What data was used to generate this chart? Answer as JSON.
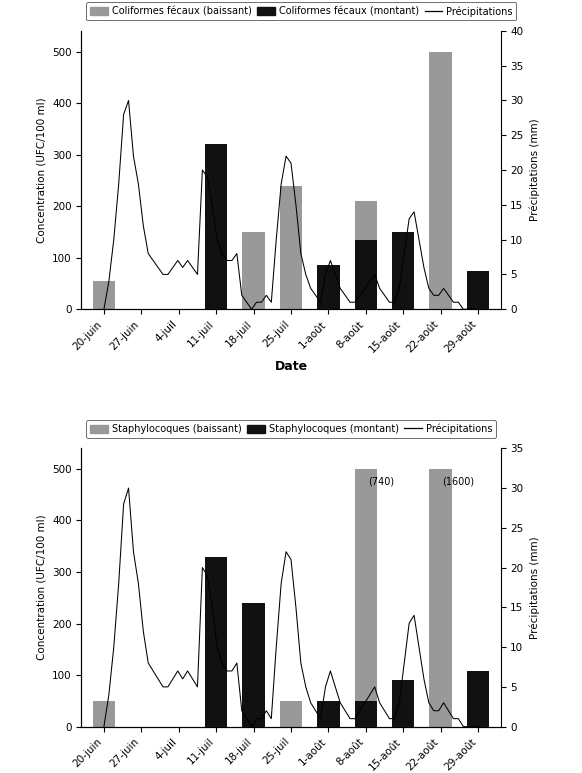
{
  "dates": [
    "20-juin",
    "27-juin",
    "4-juil",
    "11-juil",
    "18-juil",
    "25-juil",
    "1-août",
    "8-août",
    "15-août",
    "22-août",
    "29-août"
  ],
  "chart1": {
    "legend1": "Coliformes fécaux (baissant)",
    "legend2": "Coliformes fécaux (montant)",
    "legend3": "Précipitations",
    "baissant": [
      55,
      0,
      0,
      0,
      150,
      240,
      0,
      210,
      0,
      500,
      0
    ],
    "montant": [
      0,
      0,
      0,
      320,
      0,
      0,
      85,
      135,
      150,
      0,
      75
    ],
    "ylim": [
      0,
      540
    ],
    "ylim2": [
      0,
      40
    ],
    "yticks": [
      0,
      100,
      200,
      300,
      400,
      500
    ],
    "yticks2": [
      0,
      5,
      10,
      15,
      20,
      25,
      30,
      35,
      40
    ],
    "ylabel": "Concentration (UFC/100 ml)",
    "ylabel2": "Précipitations (mm)"
  },
  "chart2": {
    "legend1": "Staphylocoques (baissant)",
    "legend2": "Staphylocoques (montant)",
    "legend3": "Précipitations",
    "baissant": [
      50,
      0,
      0,
      0,
      130,
      50,
      0,
      500,
      0,
      500,
      0
    ],
    "montant": [
      0,
      0,
      0,
      330,
      240,
      0,
      50,
      50,
      90,
      0,
      107
    ],
    "annot_idx": [
      7,
      9
    ],
    "annots": [
      "(740)",
      "(1600)"
    ],
    "ylim": [
      0,
      540
    ],
    "ylim2": [
      0,
      35
    ],
    "yticks": [
      0,
      100,
      200,
      300,
      400,
      500
    ],
    "yticks2": [
      0,
      5,
      10,
      15,
      20,
      25,
      30,
      35
    ],
    "ylabel": "Concentration (UFC/100 ml)",
    "ylabel2": "Précipitations (mm)"
  },
  "precip_vals": [
    0,
    4,
    10,
    18,
    28,
    30,
    22,
    18,
    12,
    8,
    7,
    6,
    5,
    5,
    6,
    7,
    6,
    7,
    6,
    5,
    20,
    19,
    15,
    10,
    8,
    7,
    7,
    8,
    2,
    1,
    0,
    1,
    1,
    2,
    1,
    10,
    18,
    22,
    21,
    15,
    8,
    5,
    3,
    2,
    1,
    5,
    7,
    5,
    3,
    2,
    1,
    1,
    2,
    3,
    4,
    5,
    3,
    2,
    1,
    1,
    3,
    8,
    13,
    14,
    10,
    6,
    3,
    2,
    2,
    3,
    2,
    1,
    1,
    0,
    0,
    0,
    0
  ],
  "bar_color_baissant": "#999999",
  "bar_color_montant": "#111111",
  "line_color": "#000000",
  "xlabel": "Date",
  "bar_width": 0.6
}
